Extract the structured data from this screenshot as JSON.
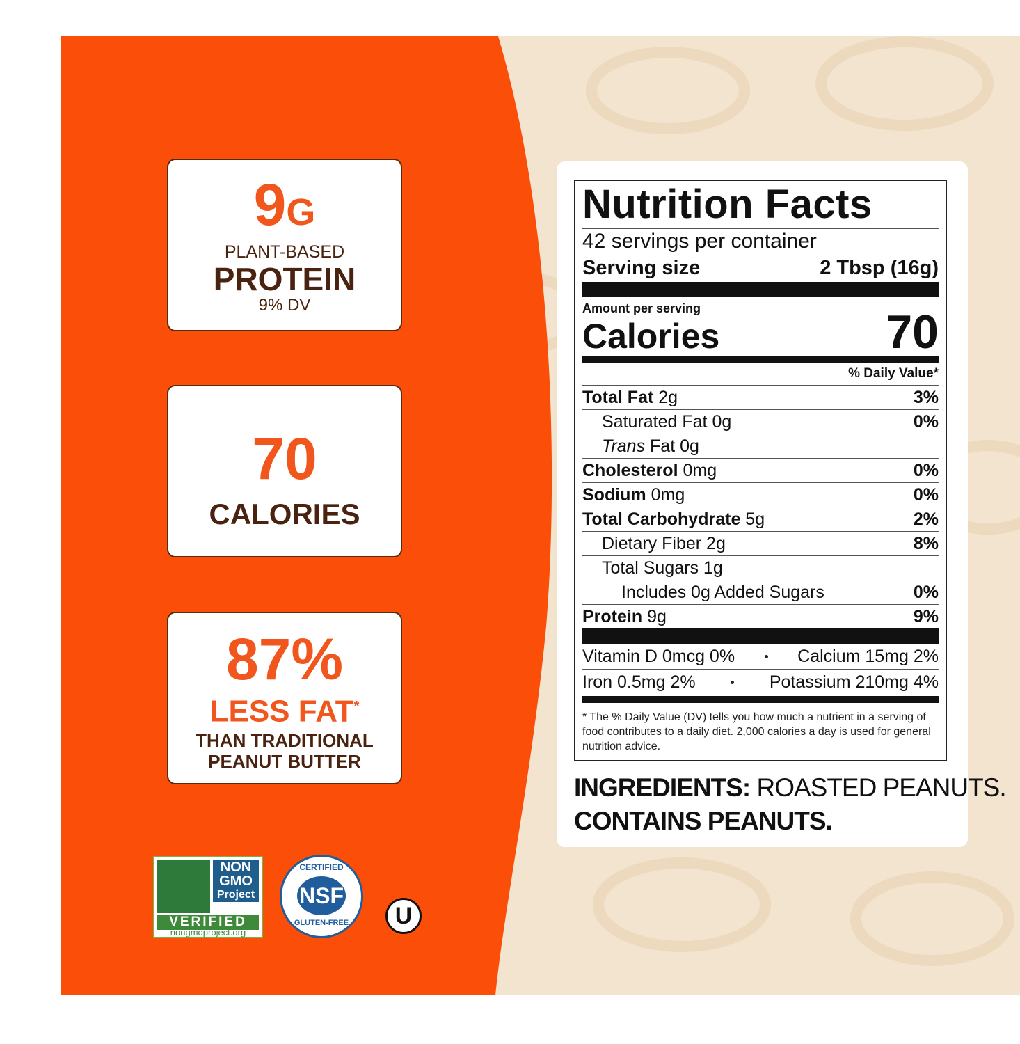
{
  "cards": [
    {
      "value": "9",
      "unit": "G",
      "lines": [
        "PLANT-BASED",
        "PROTEIN",
        "9% DV"
      ]
    },
    {
      "value": "70",
      "lines": [
        "CALORIES"
      ]
    },
    {
      "value": "87%",
      "highlight": "LESS FAT",
      "mark": "*",
      "lines": [
        "THAN TRADITIONAL",
        "PEANUT BUTTER"
      ]
    }
  ],
  "badges": {
    "nongmo": [
      "NON",
      "GMO",
      "Project",
      "VERIFIED",
      "nongmoproject.org"
    ],
    "nsf": {
      "top": "CERTIFIED",
      "center": "NSF",
      "bottom": "GLUTEN-FREE"
    },
    "kosher": "U"
  },
  "nutrition": {
    "title": "Nutrition Facts",
    "servings": "42 servings per container",
    "serving_size_label": "Serving size",
    "serving_size": "2 Tbsp (16g)",
    "amount_per_serving": "Amount per serving",
    "calories_label": "Calories",
    "calories": "70",
    "dv_header": "% Daily Value*",
    "rows": [
      {
        "name": "Total Fat",
        "amount": "2g",
        "dv": "3%"
      },
      {
        "name": "Saturated Fat",
        "amount": "0g",
        "dv": "0%"
      },
      {
        "name": "Trans",
        "amount": "Fat 0g"
      },
      {
        "name": "Cholesterol",
        "amount": "0mg",
        "dv": "0%"
      },
      {
        "name": "Sodium",
        "amount": "0mg",
        "dv": "0%"
      },
      {
        "name": "Total Carbohydrate",
        "amount": "5g",
        "dv": "2%"
      },
      {
        "name": "Dietary Fiber",
        "amount": "2g",
        "dv": "8%"
      },
      {
        "name": "Total Sugars",
        "amount": "1g"
      },
      {
        "name": "Includes 0g Added Sugars",
        "dv": "0%"
      },
      {
        "name": "Protein",
        "amount": "9g",
        "dv": "9%"
      }
    ],
    "vitamins": [
      [
        "Vitamin D 0mcg 0%",
        "Calcium 15mg 2%"
      ],
      [
        "Iron 0.5mg 2%",
        "Potassium 210mg 4%"
      ]
    ],
    "footnote": "* The % Daily Value (DV) tells you how much a nutrient in a serving of food contributes to a daily diet. 2,000 calories a day is used for general nutrition advice."
  },
  "ingredients": {
    "label": "INGREDIENTS:",
    "text": "ROASTED PEANUTS.",
    "contains": "CONTAINS PEANUTS."
  }
}
